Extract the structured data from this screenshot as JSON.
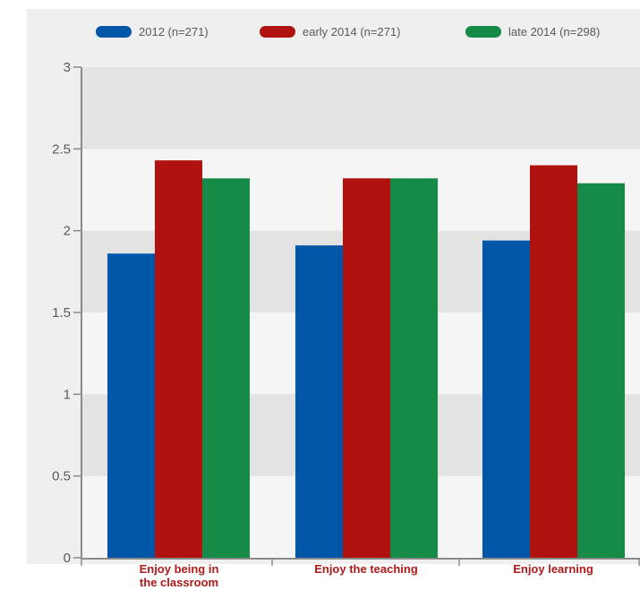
{
  "chart_data": {
    "type": "bar",
    "categories": [
      "Enjoy being in the classroom",
      "Enjoy the teaching",
      "Enjoy learning"
    ],
    "category_label_lines": [
      [
        "Enjoy being in",
        "the classroom"
      ],
      [
        "Enjoy the teaching"
      ],
      [
        "Enjoy learning"
      ]
    ],
    "series": [
      {
        "name": "2012 (n=271)",
        "color": "#0057a8",
        "values": [
          1.86,
          1.91,
          1.94
        ]
      },
      {
        "name": "early 2014 (n=271)",
        "color": "#b0120f",
        "values": [
          2.43,
          2.32,
          2.4
        ]
      },
      {
        "name": "late 2014 (n=298)",
        "color": "#168a47",
        "values": [
          2.32,
          2.32,
          2.29
        ]
      }
    ],
    "ylim": [
      0,
      3
    ],
    "yticks": [
      "0",
      "0.5",
      "1",
      "1.5",
      "2",
      "2.5",
      "3"
    ],
    "grid": "alternating horizontal bands",
    "legend_position": "top"
  }
}
